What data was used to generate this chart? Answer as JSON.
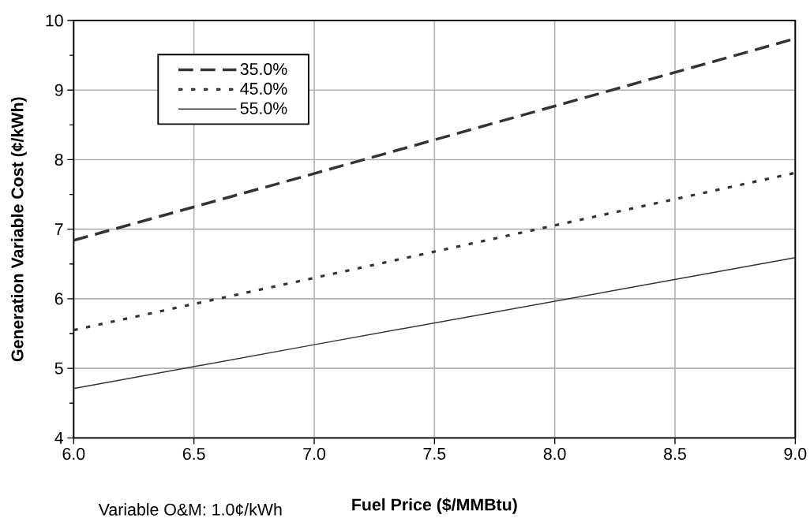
{
  "chart_data": {
    "type": "line",
    "xlabel": "Fuel Price ($/MMBtu)",
    "ylabel": "Generation Variable  Cost (¢/kWh)",
    "series": [
      {
        "name": "35.0%",
        "color": "#333333",
        "line_style": "dashed",
        "x": [
          6.0,
          7.0,
          9.0
        ],
        "values": [
          6.84,
          7.8,
          9.74
        ]
      },
      {
        "name": "45.0%",
        "color": "#333333",
        "line_style": "dotted",
        "x": [
          6.0,
          7.0,
          9.0
        ],
        "values": [
          5.55,
          6.3,
          7.81
        ]
      },
      {
        "name": "55.0%",
        "color": "#333333",
        "line_style": "solid",
        "x": [
          6.0,
          7.0,
          9.0
        ],
        "values": [
          4.71,
          5.34,
          6.59
        ]
      }
    ],
    "xlim": [
      6.0,
      9.0
    ],
    "ylim": [
      4,
      10
    ],
    "xticks": [
      {
        "value": 6.0,
        "label": "6.0"
      },
      {
        "value": 6.5,
        "label": "6.5"
      },
      {
        "value": 7.0,
        "label": "7.0"
      },
      {
        "value": 7.5,
        "label": "7.5"
      },
      {
        "value": 8.0,
        "label": "8.0"
      },
      {
        "value": 8.5,
        "label": "8.5"
      },
      {
        "value": 9.0,
        "label": "9.0"
      }
    ],
    "yticks": [
      4,
      {
        "value": 4.5,
        "label": null
      },
      5,
      {
        "value": 5.5,
        "label": null
      },
      6,
      {
        "value": 6.5,
        "label": null
      },
      7,
      {
        "value": 7.5,
        "label": null
      },
      8,
      {
        "value": 8.5,
        "label": null
      },
      9,
      {
        "value": 9.5,
        "label": null
      },
      10
    ],
    "grid": true,
    "legend": "top left",
    "annotations": [
      "Variable  O&M: 1.0¢/kWh"
    ]
  }
}
